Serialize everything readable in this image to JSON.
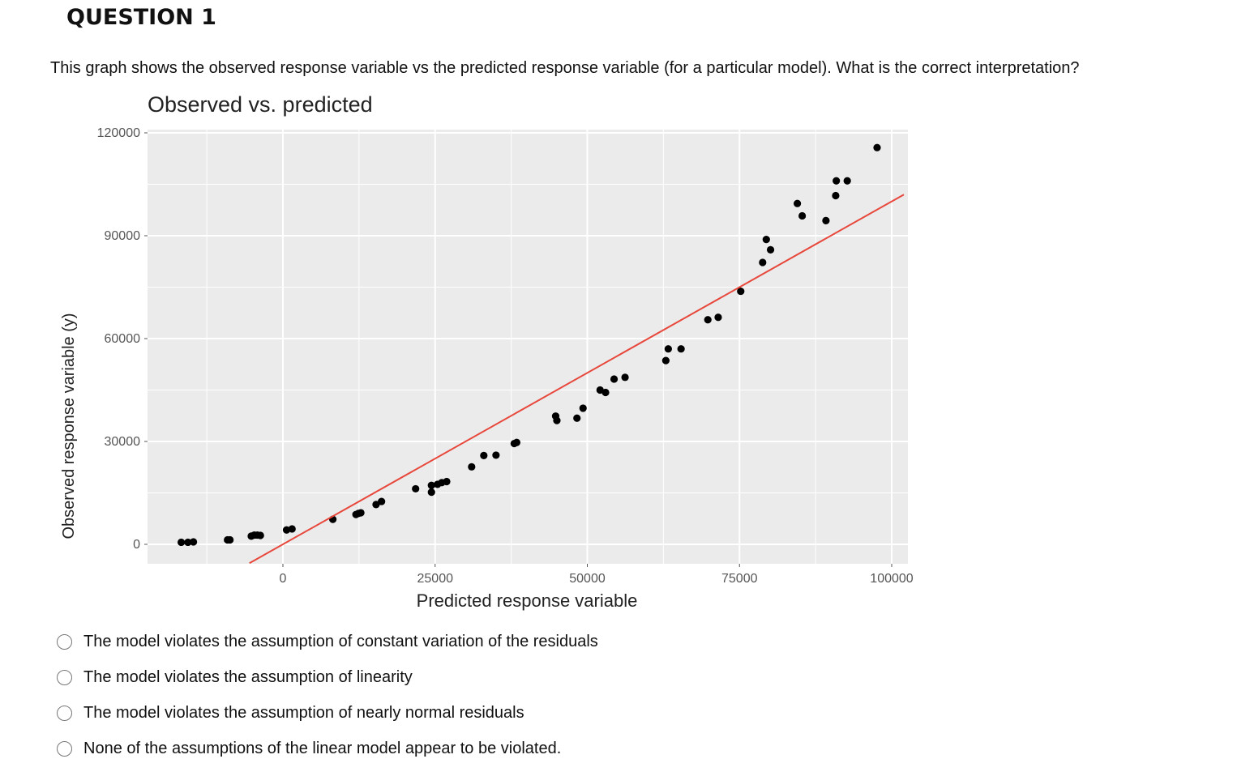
{
  "question": {
    "title": "QUESTION 1",
    "text": "This graph shows the observed response variable vs the predicted response variable (for a particular model). What is the correct interpretation?"
  },
  "options": [
    {
      "label": "The model violates the assumption of constant variation of the residuals",
      "selected": false
    },
    {
      "label": "The model violates the assumption of linearity",
      "selected": false
    },
    {
      "label": "The model violates the assumption of nearly normal residuals",
      "selected": false
    },
    {
      "label": "None of the assumptions of the linear model appear to be violated.",
      "selected": false
    }
  ],
  "chart_data": {
    "type": "scatter",
    "title": "Observed vs. predicted",
    "xlabel": "Predicted response variable",
    "ylabel": "Observed response variable (y)",
    "xlim": [
      -18500,
      103000
    ],
    "ylim": [
      -5000,
      122000
    ],
    "xticks": [
      0,
      25000,
      50000,
      75000,
      100000
    ],
    "yticks": [
      0,
      30000,
      60000,
      90000,
      120000
    ],
    "grid": true,
    "colors": {
      "panel": "#ebebeb",
      "grid": "#ffffff",
      "points": "#000000",
      "line": "#e8473b"
    },
    "reference_line": {
      "slope": 1,
      "intercept": 0,
      "x_range": [
        -5500,
        102000
      ]
    },
    "points": [
      [
        -16700,
        600
      ],
      [
        -15600,
        600
      ],
      [
        -14700,
        700
      ],
      [
        -9100,
        1300
      ],
      [
        -8700,
        1300
      ],
      [
        -5200,
        2400
      ],
      [
        -4700,
        2700
      ],
      [
        -4200,
        2700
      ],
      [
        -3700,
        2600
      ],
      [
        600,
        4200
      ],
      [
        1500,
        4500
      ],
      [
        8200,
        7300
      ],
      [
        12000,
        8700
      ],
      [
        12400,
        9000
      ],
      [
        12800,
        9200
      ],
      [
        15300,
        11600
      ],
      [
        16200,
        12500
      ],
      [
        21800,
        16200
      ],
      [
        24400,
        15200
      ],
      [
        24400,
        17200
      ],
      [
        25400,
        17500
      ],
      [
        26100,
        18000
      ],
      [
        26900,
        18300
      ],
      [
        31000,
        22600
      ],
      [
        33000,
        25900
      ],
      [
        35000,
        26000
      ],
      [
        38000,
        29400
      ],
      [
        38400,
        29700
      ],
      [
        44800,
        37400
      ],
      [
        45000,
        36100
      ],
      [
        48300,
        36800
      ],
      [
        49300,
        39700
      ],
      [
        52100,
        45000
      ],
      [
        53000,
        44300
      ],
      [
        54400,
        48200
      ],
      [
        56200,
        48700
      ],
      [
        62900,
        53600
      ],
      [
        63300,
        57000
      ],
      [
        65400,
        57000
      ],
      [
        69800,
        65500
      ],
      [
        71500,
        66200
      ],
      [
        75200,
        73800
      ],
      [
        78800,
        82200
      ],
      [
        79400,
        88900
      ],
      [
        80100,
        85900
      ],
      [
        84500,
        99400
      ],
      [
        85300,
        95800
      ],
      [
        89200,
        94400
      ],
      [
        90800,
        101700
      ],
      [
        90900,
        106000
      ],
      [
        92700,
        106000
      ],
      [
        97600,
        115700
      ]
    ]
  }
}
